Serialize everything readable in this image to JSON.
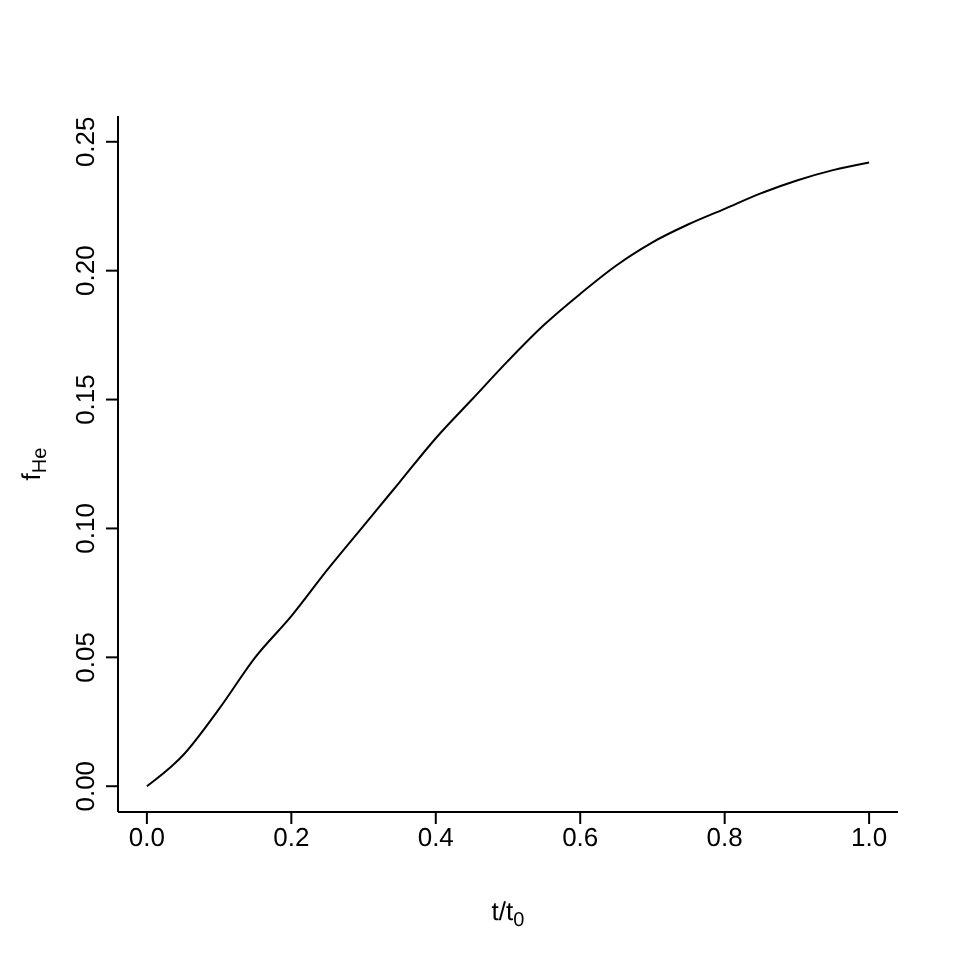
{
  "chart_data": {
    "type": "line",
    "xlabel": "t/t$_{0}$",
    "ylabel": "f$_{He}$",
    "x": [
      0,
      0.05,
      0.1,
      0.15,
      0.2,
      0.25,
      0.3,
      0.35,
      0.4,
      0.45,
      0.5,
      0.55,
      0.6,
      0.65,
      0.7,
      0.75,
      0.8,
      0.85,
      0.9,
      0.95,
      1.0
    ],
    "series": [
      {
        "color": "#000000",
        "values": [
          0,
          0.012,
          0.03,
          0.05,
          0.066,
          0.084,
          0.101,
          0.118,
          0.135,
          0.15,
          0.165,
          0.179,
          0.191,
          0.202,
          0.211,
          0.218,
          0.224,
          0.23,
          0.235,
          0.239,
          0.242
        ]
      }
    ],
    "xlim": [
      -0.04,
      1.04
    ],
    "ylim": [
      -0.01,
      0.26
    ],
    "xticks": [
      {
        "value": 0,
        "label": "0.0"
      },
      {
        "value": 0.2,
        "label": "0.2"
      },
      {
        "value": 0.4,
        "label": "0.4"
      },
      {
        "value": 0.6,
        "label": "0.6"
      },
      {
        "value": 0.8,
        "label": "0.8"
      },
      {
        "value": 1,
        "label": "1.0"
      }
    ],
    "yticks": [
      {
        "value": 0,
        "label": "0.00"
      },
      {
        "value": 0.05,
        "label": "0.05"
      },
      {
        "value": 0.1,
        "label": "0.10"
      },
      {
        "value": 0.15,
        "label": "0.15"
      },
      {
        "value": 0.2,
        "label": "0.20"
      },
      {
        "value": 0.25,
        "label": "0.25"
      }
    ],
    "line_style": "solid",
    "marker": "none",
    "grid": false,
    "legend": false
  }
}
